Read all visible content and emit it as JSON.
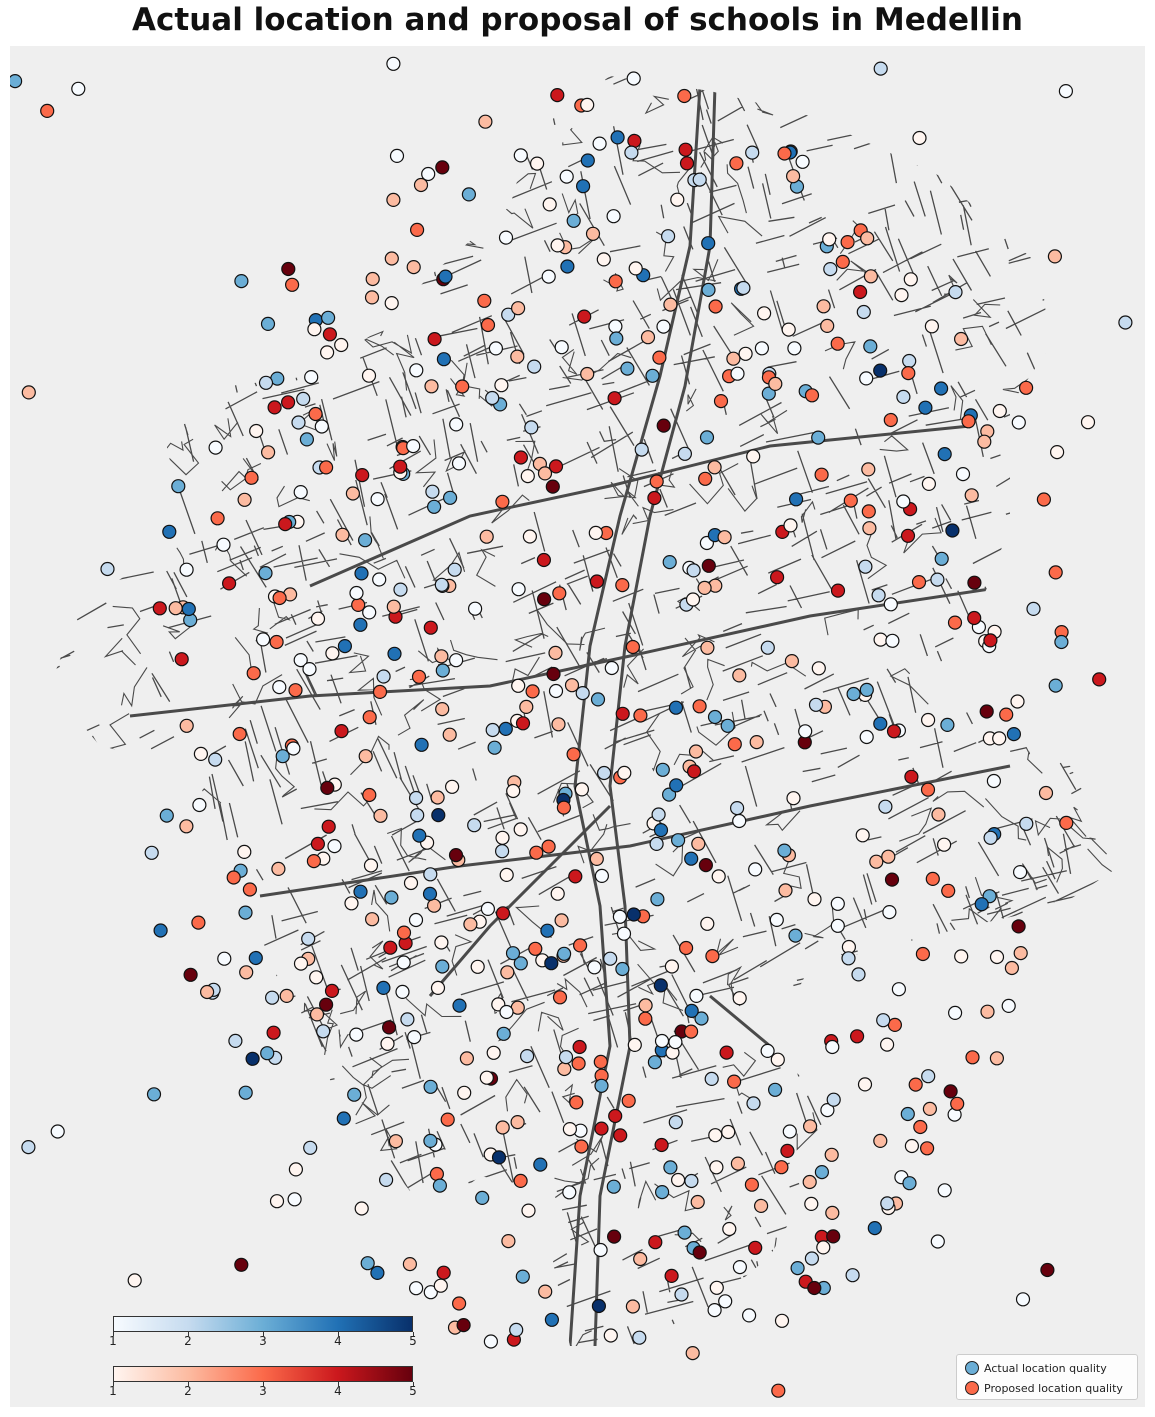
{
  "title": "Actual location and proposal of schools in Medellin",
  "legend": {
    "actual_label": "Actual location quality",
    "proposed_label": "Proposed location quality",
    "actual_color": "#6baed6",
    "proposed_color": "#fb6a4a"
  },
  "colorbars": {
    "actual": {
      "ticks": [
        "1",
        "2",
        "3",
        "4",
        "5"
      ],
      "colors": [
        "#f7fbff",
        "#c6dbef",
        "#6baed6",
        "#2171b5",
        "#08306b"
      ]
    },
    "proposed": {
      "ticks": [
        "1",
        "2",
        "3",
        "4",
        "5"
      ],
      "colors": [
        "#fff5f0",
        "#fcbba1",
        "#fb6a4a",
        "#cb181d",
        "#67000d"
      ]
    }
  },
  "colors": {
    "background": "#efefef",
    "streets": "#4a4a4a",
    "marker_edge": "#111111"
  }
}
